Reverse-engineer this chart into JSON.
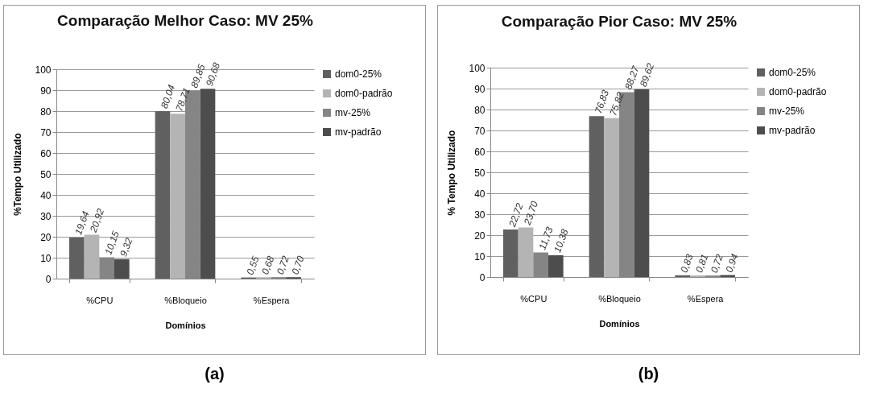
{
  "chart_data": [
    {
      "type": "bar",
      "title": "Comparação Melhor Caso: MV 25%",
      "xlabel": "Domínios",
      "ylabel": "%Tempo Utilizado",
      "categories": [
        "%CPU",
        "%Bloqueio",
        "%Espera"
      ],
      "series": [
        {
          "name": "dom0-25%",
          "color": "#606060",
          "values": [
            19.64,
            80.04,
            0.55
          ],
          "value_labels": [
            "19,64",
            "80,04",
            "0,55"
          ]
        },
        {
          "name": "dom0-padrão",
          "color": "#b4b4b4",
          "values": [
            20.92,
            78.71,
            0.68
          ],
          "value_labels": [
            "20,92",
            "78,71",
            "0,68"
          ]
        },
        {
          "name": "mv-25%",
          "color": "#858585",
          "values": [
            10.15,
            89.85,
            0.72
          ],
          "value_labels": [
            "10,15",
            "89,85",
            "0,72"
          ]
        },
        {
          "name": "mv-padrão",
          "color": "#4d4d4d",
          "values": [
            9.32,
            90.68,
            0.7
          ],
          "value_labels": [
            "9,32",
            "90,68",
            "0,70"
          ]
        }
      ],
      "ylim": [
        0,
        100
      ],
      "yticks": [
        0,
        10,
        20,
        30,
        40,
        50,
        60,
        70,
        80,
        90,
        100
      ],
      "grid": "y",
      "legend": "right",
      "annotations": [
        "(a)"
      ]
    },
    {
      "type": "bar",
      "title": "Comparação Pior Caso: MV 25%",
      "xlabel": "Domínios",
      "ylabel": "% Tempo Utilizado",
      "categories": [
        "%CPU",
        "%Bloqueio",
        "%Espera"
      ],
      "series": [
        {
          "name": "dom0-25%",
          "color": "#606060",
          "values": [
            22.72,
            76.83,
            0.83
          ],
          "value_labels": [
            "22,72",
            "76,83",
            "0,83"
          ]
        },
        {
          "name": "dom0-padrão",
          "color": "#b4b4b4",
          "values": [
            23.7,
            75.82,
            0.81
          ],
          "value_labels": [
            "23,70",
            "75,82",
            "0,81"
          ]
        },
        {
          "name": "mv-25%",
          "color": "#858585",
          "values": [
            11.73,
            88.27,
            0.72
          ],
          "value_labels": [
            "11,73",
            "88,27",
            "0,72"
          ]
        },
        {
          "name": "mv-padrão",
          "color": "#4d4d4d",
          "values": [
            10.38,
            89.62,
            0.94
          ],
          "value_labels": [
            "10,38",
            "89,62",
            "0,94"
          ]
        }
      ],
      "ylim": [
        0,
        100
      ],
      "yticks": [
        0,
        10,
        20,
        30,
        40,
        50,
        60,
        70,
        80,
        90,
        100
      ],
      "grid": "y",
      "legend": "right",
      "annotations": [
        "(b)"
      ]
    }
  ]
}
